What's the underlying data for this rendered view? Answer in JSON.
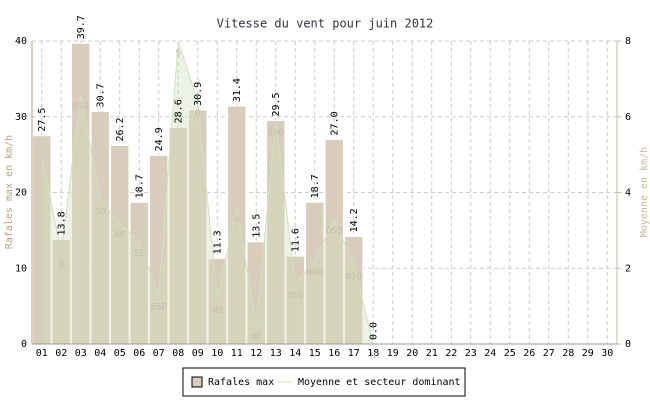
{
  "chart_data": {
    "type": "bar",
    "title": "Vitesse du vent pour juin 2012",
    "categories": [
      "01",
      "02",
      "03",
      "04",
      "05",
      "06",
      "07",
      "08",
      "09",
      "10",
      "11",
      "12",
      "13",
      "14",
      "15",
      "16",
      "17",
      "18",
      "19",
      "20",
      "21",
      "22",
      "23",
      "24",
      "25",
      "26",
      "27",
      "28",
      "29",
      "30"
    ],
    "ylabel": "Rafales max en km/h",
    "y2label": "Moyenne en km/h",
    "ylim": [
      0,
      40
    ],
    "yticks": [
      0,
      10,
      20,
      30,
      40
    ],
    "y2lim": [
      0,
      8
    ],
    "y2ticks": [
      0,
      2,
      4,
      6,
      8
    ],
    "grid": true,
    "legend": "bottom",
    "series": [
      {
        "name": "Rafales max",
        "type": "bar",
        "color": "#d8ccbb",
        "values": [
          27.5,
          13.8,
          39.7,
          30.7,
          26.2,
          18.7,
          24.9,
          28.6,
          30.9,
          11.3,
          31.4,
          13.5,
          29.5,
          11.6,
          18.7,
          27.0,
          14.2,
          0.0,
          null,
          null,
          null,
          null,
          null,
          null,
          null,
          null,
          null,
          null,
          null,
          null
        ],
        "value_labels": [
          "27.5",
          "13.8",
          "39.7",
          "30.7",
          "26.2",
          "18.7",
          "24.9",
          "28.6",
          "30.9",
          "11.3",
          "31.4",
          "13.5",
          "29.5",
          "11.6",
          "18.7",
          "27.0",
          "14.2",
          "0.0",
          null,
          null,
          null,
          null,
          null,
          null,
          null,
          null,
          null,
          null,
          null,
          null
        ]
      },
      {
        "name": "Moyenne et secteur dominant",
        "type": "area",
        "axis": "y2",
        "color": "#d2e0bc",
        "values": [
          5.0,
          2.4,
          6.6,
          3.8,
          3.2,
          2.7,
          1.3,
          8.0,
          6.4,
          1.2,
          3.6,
          0.5,
          5.9,
          1.6,
          2.2,
          3.3,
          2.1,
          0,
          null,
          null,
          null,
          null,
          null,
          null,
          null,
          null,
          null,
          null,
          null,
          null
        ],
        "point_labels": [
          null,
          "O",
          "OSO",
          "SO",
          "NE",
          "SE",
          "ESE",
          "S",
          "O",
          "NO",
          "O",
          "NE",
          "SSO",
          "OSO",
          "NNO",
          "OSO",
          "OSO",
          "N",
          null,
          null,
          null,
          null,
          null,
          null,
          null,
          null,
          null,
          null,
          null,
          null
        ]
      }
    ]
  }
}
